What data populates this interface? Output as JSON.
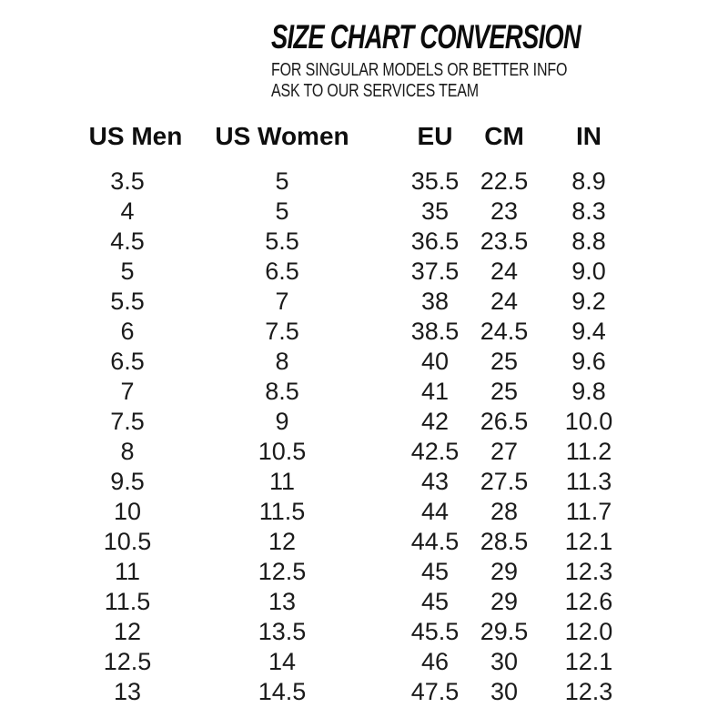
{
  "page": {
    "background_color": "#ffffff",
    "text_color": "#161616"
  },
  "header": {
    "title": "SIZE CHART CONVERSION",
    "subtitle_line1": "FOR SINGULAR MODELS OR BETTER INFO",
    "subtitle_line2": "ASK TO OUR SERVICES TEAM"
  },
  "table": {
    "columns": [
      "US Men",
      "US Women",
      "EU",
      "CM",
      "IN"
    ],
    "rows": [
      [
        "3.5",
        "5",
        "35.5",
        "22.5",
        "8.9"
      ],
      [
        "4",
        "5",
        "35",
        "23",
        "8.3"
      ],
      [
        "4.5",
        "5.5",
        "36.5",
        "23.5",
        "8.8"
      ],
      [
        "5",
        "6.5",
        "37.5",
        "24",
        "9.0"
      ],
      [
        "5.5",
        "7",
        "38",
        "24",
        "9.2"
      ],
      [
        "6",
        "7.5",
        "38.5",
        "24.5",
        "9.4"
      ],
      [
        "6.5",
        "8",
        "40",
        "25",
        "9.6"
      ],
      [
        "7",
        "8.5",
        "41",
        "25",
        "9.8"
      ],
      [
        "7.5",
        "9",
        "42",
        "26.5",
        "10.0"
      ],
      [
        "8",
        "10.5",
        "42.5",
        "27",
        "11.2"
      ],
      [
        "9.5",
        "11",
        "43",
        "27.5",
        "11.3"
      ],
      [
        "10",
        "11.5",
        "44",
        "28",
        "11.7"
      ],
      [
        "10.5",
        "12",
        "44.5",
        "28.5",
        "12.1"
      ],
      [
        "11",
        "12.5",
        "45",
        "29",
        "12.3"
      ],
      [
        "11.5",
        "13",
        "45",
        "29",
        "12.6"
      ],
      [
        "12",
        "13.5",
        "45.5",
        "29.5",
        "12.0"
      ],
      [
        "12.5",
        "14",
        "46",
        "30",
        "12.1"
      ],
      [
        "13",
        "14.5",
        "47.5",
        "30",
        "12.3"
      ]
    ]
  }
}
